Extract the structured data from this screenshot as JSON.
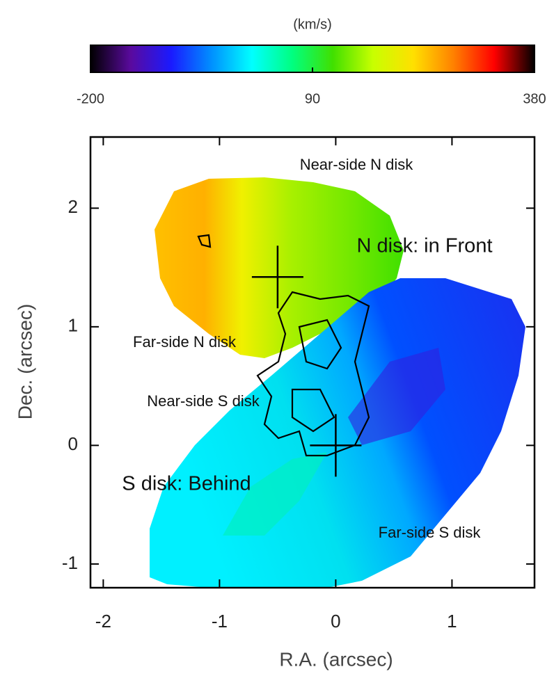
{
  "chart_data": {
    "type": "velocity-map",
    "x_label": "R.A. (arcsec)",
    "y_label": "Dec. (arcsec)",
    "xlim": [
      -2.11,
      1.71
    ],
    "ylim": [
      -1.2,
      2.6
    ],
    "xticks": [
      -2,
      -1,
      0,
      1
    ],
    "yticks": [
      -1,
      0,
      1,
      2
    ],
    "colorbar": {
      "label": "(km/s)",
      "lim": [
        -200,
        380
      ],
      "ticks": [
        -200,
        90,
        380
      ],
      "colormap": [
        "#000000",
        "#5a0a9e",
        "#1a1aff",
        "#0090ff",
        "#00ffff",
        "#00ff80",
        "#40e000",
        "#c8ff00",
        "#ffe000",
        "#ff8000",
        "#ff0000",
        "#000000"
      ]
    },
    "markers": {
      "x": [
        -0.5,
        0
      ],
      "y": [
        1.42,
        0
      ]
    },
    "annotations": [
      "Near-side N disk",
      "N disk: in Front",
      "Far-side N disk",
      "Near-side S disk",
      "S disk: Behind",
      "Far-side S disk"
    ]
  }
}
